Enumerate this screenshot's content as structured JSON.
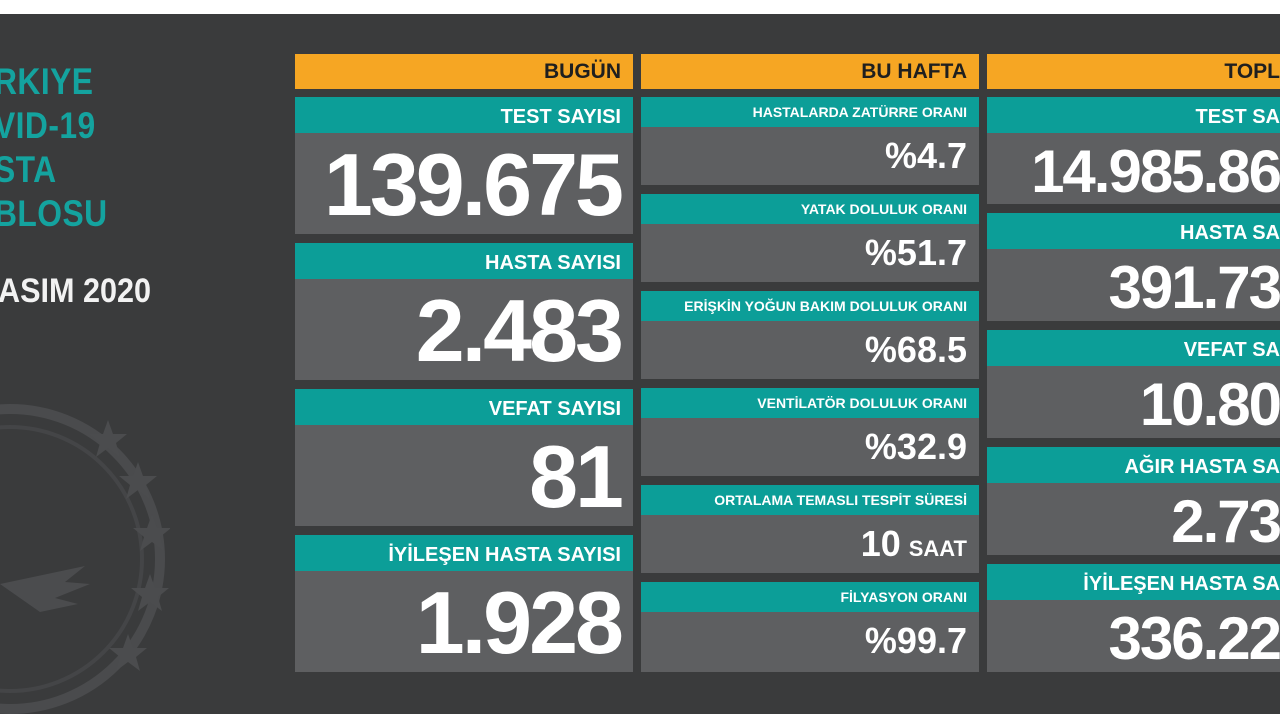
{
  "sidebar": {
    "title_lines": [
      "RKIYE",
      "VID-19",
      "STA",
      "BLOSU"
    ],
    "date": "ASIM 2020"
  },
  "columns": {
    "today": {
      "header": "BUGÜN",
      "cards": [
        {
          "label": "TEST SAYISI",
          "value": "139.675"
        },
        {
          "label": "HASTA SAYISI",
          "value": "2.483"
        },
        {
          "label": "VEFAT SAYISI",
          "value": "81"
        },
        {
          "label": "İYİLEŞEN HASTA SAYISI",
          "value": "1.928"
        }
      ]
    },
    "week": {
      "header": "BU HAFTA",
      "cards": [
        {
          "label": "HASTALARDA ZATÜRRE ORANI",
          "value": "%4.7"
        },
        {
          "label": "YATAK DOLULUK ORANI",
          "value": "%51.7"
        },
        {
          "label": "ERİŞKİN YOĞUN BAKIM DOLULUK ORANI",
          "value": "%68.5"
        },
        {
          "label": "VENTİLATÖR DOLULUK ORANI",
          "value": "%32.9"
        },
        {
          "label": "ORTALAMA TEMASLI TESPİT SÜRESİ",
          "value": "10",
          "unit": "SAAT"
        },
        {
          "label": "FİLYASYON ORANI",
          "value": "%99.7"
        }
      ]
    },
    "total": {
      "header": "TOPL",
      "cards": [
        {
          "label": "TEST SA",
          "value": "14.985.86"
        },
        {
          "label": "HASTA SA",
          "value": "391.73"
        },
        {
          "label": "VEFAT SA",
          "value": "10.80"
        },
        {
          "label": "AĞIR HASTA SA",
          "value": "2.73"
        },
        {
          "label": "İYİLEŞEN HASTA SA",
          "value": "336.22"
        }
      ]
    }
  },
  "colors": {
    "background": "#3a3b3c",
    "header_orange": "#f6a623",
    "label_teal": "#0c9e98",
    "value_gray": "#5e5f61",
    "title_teal": "#14a39f"
  },
  "emblem_icon": "ministry-emblem-icon"
}
